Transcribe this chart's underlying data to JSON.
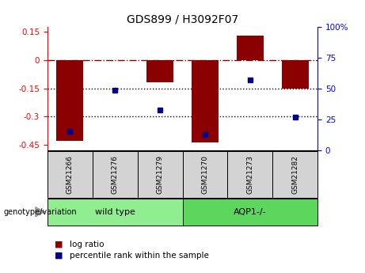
{
  "title": "GDS899 / H3092F07",
  "samples": [
    "GSM21266",
    "GSM21276",
    "GSM21279",
    "GSM21270",
    "GSM21273",
    "GSM21282"
  ],
  "log_ratio": [
    -0.43,
    0.002,
    -0.12,
    -0.44,
    0.132,
    -0.15
  ],
  "percentile_rank": [
    15,
    49,
    33,
    13,
    57,
    27
  ],
  "group_labels": [
    "wild type",
    "AQP1-/-"
  ],
  "group_colors": [
    "#90EE90",
    "#5CD65C"
  ],
  "group_sample_counts": [
    3,
    3
  ],
  "bar_color": "#8B0000",
  "dot_color": "#00008B",
  "ylim_left": [
    -0.48,
    0.175
  ],
  "ylim_right": [
    0,
    100
  ],
  "yticks_left": [
    0.15,
    0.0,
    -0.15,
    -0.3,
    -0.45
  ],
  "ytick_labels_left": [
    "0.15",
    "0",
    "-0.15",
    "-0.3",
    "-0.45"
  ],
  "yticks_right": [
    100,
    75,
    50,
    25,
    0
  ],
  "ytick_labels_right": [
    "100%",
    "75",
    "50",
    "25",
    "0"
  ],
  "hline_y": 0.0,
  "dotted_lines": [
    -0.15,
    -0.3
  ],
  "bar_width": 0.6,
  "legend_label_ratio": "log ratio",
  "legend_label_pct": "percentile rank within the sample",
  "genotype_label": "genotype/variation"
}
